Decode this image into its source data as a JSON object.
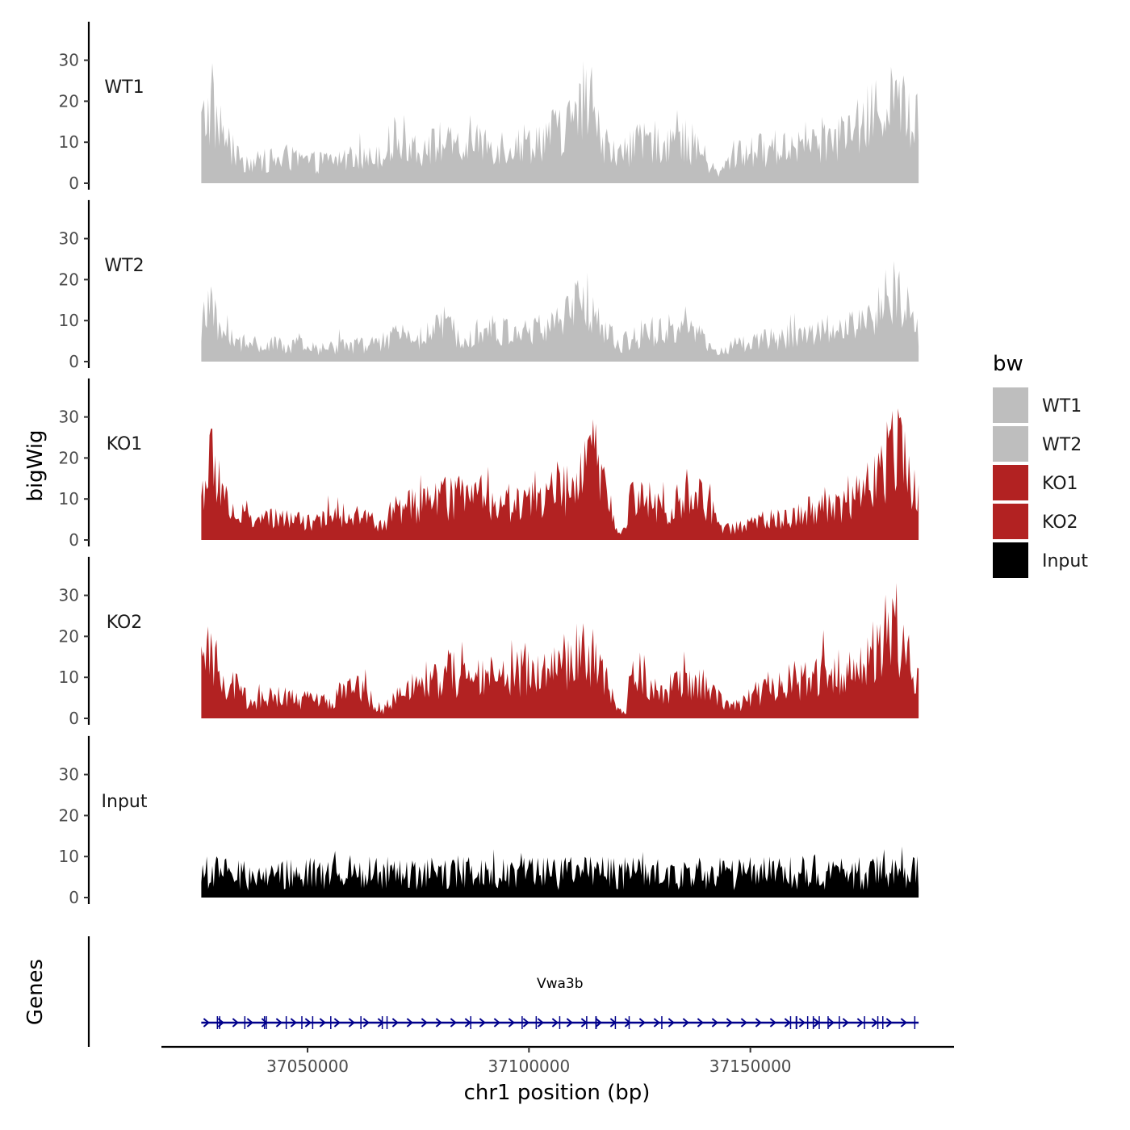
{
  "chart_data": {
    "type": "area",
    "title": "",
    "xlabel": "chr1 position (bp)",
    "ylabel": "bigWig",
    "genes_label": "Genes",
    "xlim": [
      37017000,
      37196000
    ],
    "data_range": [
      37026000,
      37188000
    ],
    "ylim": [
      0,
      38
    ],
    "y_ticks": [
      "0",
      "10",
      "20",
      "30"
    ],
    "x_ticks": [
      {
        "value": 37050000,
        "label": "37050000"
      },
      {
        "value": 37100000,
        "label": "37100000"
      },
      {
        "value": 37150000,
        "label": "37150000"
      }
    ],
    "legend": {
      "title": "bw",
      "position": "right",
      "entries": [
        {
          "label": "WT1",
          "color": "#BEBEBE"
        },
        {
          "label": "WT2",
          "color": "#BEBEBE"
        },
        {
          "label": "KO1",
          "color": "#B22222"
        },
        {
          "label": "KO2",
          "color": "#B22222"
        },
        {
          "label": "Input",
          "color": "#000000"
        }
      ]
    },
    "series": [
      {
        "name": "WT1",
        "color": "#BEBEBE",
        "noise": 0.55,
        "profile": [
          [
            37026000,
            14
          ],
          [
            37028000,
            18
          ],
          [
            37031000,
            12
          ],
          [
            37034000,
            6
          ],
          [
            37038000,
            5
          ],
          [
            37045000,
            6
          ],
          [
            37052000,
            5
          ],
          [
            37058000,
            6
          ],
          [
            37064000,
            6
          ],
          [
            37068000,
            9
          ],
          [
            37072000,
            11
          ],
          [
            37076000,
            8
          ],
          [
            37080000,
            10
          ],
          [
            37085000,
            8
          ],
          [
            37090000,
            10
          ],
          [
            37095000,
            9
          ],
          [
            37100000,
            10
          ],
          [
            37105000,
            12
          ],
          [
            37109000,
            14
          ],
          [
            37113000,
            19
          ],
          [
            37116000,
            12
          ],
          [
            37120000,
            6
          ],
          [
            37123000,
            9
          ],
          [
            37128000,
            10
          ],
          [
            37133000,
            11
          ],
          [
            37138000,
            9
          ],
          [
            37141000,
            4
          ],
          [
            37143000,
            2
          ],
          [
            37146000,
            7
          ],
          [
            37152000,
            8
          ],
          [
            37158000,
            9
          ],
          [
            37163000,
            10
          ],
          [
            37168000,
            11
          ],
          [
            37173000,
            12
          ],
          [
            37178000,
            17
          ],
          [
            37182000,
            20
          ],
          [
            37185000,
            17
          ],
          [
            37188000,
            14
          ]
        ]
      },
      {
        "name": "WT2",
        "color": "#BEBEBE",
        "noise": 0.55,
        "profile": [
          [
            37026000,
            9
          ],
          [
            37028000,
            12
          ],
          [
            37031000,
            7
          ],
          [
            37035000,
            4
          ],
          [
            37040000,
            4
          ],
          [
            37047000,
            4
          ],
          [
            37052000,
            3
          ],
          [
            37058000,
            4
          ],
          [
            37064000,
            4
          ],
          [
            37068000,
            5
          ],
          [
            37072000,
            7
          ],
          [
            37076000,
            6
          ],
          [
            37080000,
            8
          ],
          [
            37085000,
            7
          ],
          [
            37090000,
            8
          ],
          [
            37095000,
            7
          ],
          [
            37100000,
            7
          ],
          [
            37105000,
            9
          ],
          [
            37109000,
            11
          ],
          [
            37113000,
            16
          ],
          [
            37116000,
            9
          ],
          [
            37120000,
            4
          ],
          [
            37124000,
            6
          ],
          [
            37128000,
            7
          ],
          [
            37133000,
            8
          ],
          [
            37138000,
            7
          ],
          [
            37141000,
            3
          ],
          [
            37143000,
            2
          ],
          [
            37146000,
            4
          ],
          [
            37152000,
            5
          ],
          [
            37158000,
            6
          ],
          [
            37163000,
            7
          ],
          [
            37168000,
            8
          ],
          [
            37173000,
            9
          ],
          [
            37178000,
            12
          ],
          [
            37182000,
            17
          ],
          [
            37185000,
            13
          ],
          [
            37188000,
            7
          ]
        ]
      },
      {
        "name": "KO1",
        "color": "#B22222",
        "noise": 0.55,
        "profile": [
          [
            37026000,
            11
          ],
          [
            37028000,
            19
          ],
          [
            37030000,
            15
          ],
          [
            37033000,
            7
          ],
          [
            37037000,
            5
          ],
          [
            37042000,
            5
          ],
          [
            37048000,
            5
          ],
          [
            37052000,
            4
          ],
          [
            37056000,
            6
          ],
          [
            37060000,
            7
          ],
          [
            37064000,
            5
          ],
          [
            37067000,
            3
          ],
          [
            37069000,
            7
          ],
          [
            37073000,
            8
          ],
          [
            37077000,
            9
          ],
          [
            37081000,
            10
          ],
          [
            37086000,
            11
          ],
          [
            37091000,
            10
          ],
          [
            37096000,
            9
          ],
          [
            37101000,
            10
          ],
          [
            37106000,
            11
          ],
          [
            37110000,
            13
          ],
          [
            37113000,
            17
          ],
          [
            37115000,
            20
          ],
          [
            37118000,
            9
          ],
          [
            37120000,
            2
          ],
          [
            37122000,
            2
          ],
          [
            37123000,
            12
          ],
          [
            37126000,
            10
          ],
          [
            37130000,
            8
          ],
          [
            37134000,
            9
          ],
          [
            37138000,
            11
          ],
          [
            37141000,
            8
          ],
          [
            37143000,
            3
          ],
          [
            37146000,
            3
          ],
          [
            37150000,
            4
          ],
          [
            37155000,
            5
          ],
          [
            37160000,
            6
          ],
          [
            37164000,
            8
          ],
          [
            37168000,
            9
          ],
          [
            37172000,
            9
          ],
          [
            37176000,
            12
          ],
          [
            37180000,
            18
          ],
          [
            37183000,
            27
          ],
          [
            37185000,
            20
          ],
          [
            37187000,
            12
          ],
          [
            37188000,
            9
          ]
        ]
      },
      {
        "name": "KO2",
        "color": "#B22222",
        "noise": 0.55,
        "profile": [
          [
            37026000,
            10
          ],
          [
            37028000,
            16
          ],
          [
            37030000,
            12
          ],
          [
            37033000,
            8
          ],
          [
            37037000,
            4
          ],
          [
            37042000,
            5
          ],
          [
            37047000,
            5
          ],
          [
            37051000,
            4
          ],
          [
            37055000,
            4
          ],
          [
            37059000,
            7
          ],
          [
            37062000,
            8
          ],
          [
            37065000,
            4
          ],
          [
            37067000,
            2
          ],
          [
            37070000,
            5
          ],
          [
            37074000,
            7
          ],
          [
            37078000,
            9
          ],
          [
            37082000,
            11
          ],
          [
            37086000,
            10
          ],
          [
            37091000,
            9
          ],
          [
            37096000,
            11
          ],
          [
            37101000,
            12
          ],
          [
            37106000,
            12
          ],
          [
            37110000,
            15
          ],
          [
            37113000,
            16
          ],
          [
            37115000,
            14
          ],
          [
            37118000,
            6
          ],
          [
            37120000,
            2
          ],
          [
            37122000,
            1
          ],
          [
            37123000,
            13
          ],
          [
            37126000,
            10
          ],
          [
            37130000,
            7
          ],
          [
            37134000,
            8
          ],
          [
            37138000,
            9
          ],
          [
            37141000,
            7
          ],
          [
            37144000,
            4
          ],
          [
            37147000,
            3
          ],
          [
            37151000,
            6
          ],
          [
            37155000,
            8
          ],
          [
            37160000,
            9
          ],
          [
            37164000,
            10
          ],
          [
            37168000,
            11
          ],
          [
            37172000,
            12
          ],
          [
            37176000,
            14
          ],
          [
            37179000,
            18
          ],
          [
            37181000,
            24
          ],
          [
            37183000,
            22
          ],
          [
            37186000,
            13
          ],
          [
            37188000,
            8
          ]
        ]
      },
      {
        "name": "Input",
        "color": "#000000",
        "noise": 0.7,
        "profile": [
          [
            37026000,
            6
          ],
          [
            37030000,
            6
          ],
          [
            37040000,
            5
          ],
          [
            37050000,
            6
          ],
          [
            37060000,
            7
          ],
          [
            37070000,
            6
          ],
          [
            37080000,
            6
          ],
          [
            37090000,
            7
          ],
          [
            37100000,
            6
          ],
          [
            37110000,
            6
          ],
          [
            37120000,
            6
          ],
          [
            37130000,
            6
          ],
          [
            37140000,
            6
          ],
          [
            37150000,
            6
          ],
          [
            37160000,
            6
          ],
          [
            37170000,
            6
          ],
          [
            37180000,
            6
          ],
          [
            37188000,
            6
          ]
        ]
      }
    ],
    "genes": [
      {
        "name": "Vwa3b",
        "start": 37026000,
        "end": 37188000,
        "strand": "+",
        "color": "#00008B"
      }
    ]
  }
}
